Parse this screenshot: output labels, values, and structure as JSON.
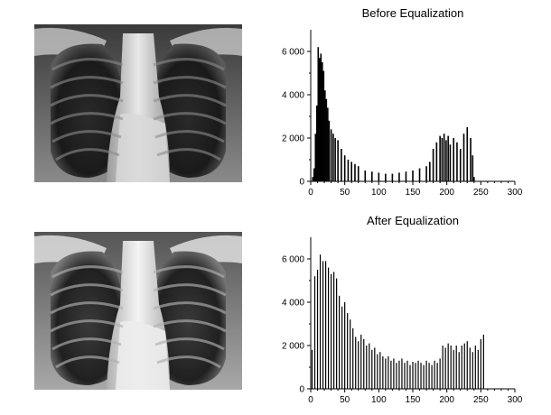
{
  "chart_data": [
    {
      "type": "bar",
      "title": "Before Equalization",
      "xlabel": "",
      "ylabel": "",
      "xlim": [
        0,
        300
      ],
      "ylim": [
        0,
        7000
      ],
      "x_ticks": [
        0,
        50,
        100,
        150,
        200,
        250,
        300
      ],
      "y_ticks": [
        0,
        2000,
        4000,
        6000
      ],
      "x_tick_labels": [
        "0",
        "50",
        "100",
        "150",
        "200",
        "250",
        "300"
      ],
      "y_tick_labels": [
        "0",
        "2 000",
        "4 000",
        "6 000"
      ],
      "grid": false,
      "series": [
        {
          "x": [
            3,
            5,
            7,
            9,
            11,
            13,
            15,
            17,
            19,
            21,
            23,
            25,
            27,
            30,
            33,
            36,
            40,
            45,
            50,
            55,
            60,
            65,
            70,
            80,
            90,
            100,
            110,
            120,
            130,
            140,
            150,
            160,
            170,
            175,
            180,
            185,
            190,
            193,
            196,
            199,
            202,
            205,
            210,
            215,
            220,
            225,
            230,
            235,
            238,
            240,
            242
          ],
          "values": [
            200,
            600,
            2200,
            3500,
            6200,
            5700,
            5900,
            5500,
            5100,
            4200,
            3800,
            3400,
            2800,
            2400,
            2200,
            2000,
            1900,
            1500,
            1200,
            1000,
            900,
            800,
            700,
            500,
            450,
            400,
            350,
            350,
            400,
            450,
            500,
            600,
            700,
            900,
            1500,
            1800,
            2100,
            2000,
            2200,
            1900,
            2100,
            1700,
            2000,
            1800,
            1500,
            2200,
            2500,
            2000,
            1200,
            200,
            0
          ]
        }
      ]
    },
    {
      "type": "bar",
      "title": "After Equalization",
      "xlabel": "",
      "ylabel": "",
      "xlim": [
        0,
        300
      ],
      "ylim": [
        0,
        7000
      ],
      "x_ticks": [
        0,
        50,
        100,
        150,
        200,
        250,
        300
      ],
      "y_ticks": [
        0,
        2000,
        4000,
        6000
      ],
      "x_tick_labels": [
        "0",
        "50",
        "100",
        "150",
        "200",
        "250",
        "300"
      ],
      "y_tick_labels": [
        "0",
        "2 000",
        "4 000",
        "6 000"
      ],
      "grid": false,
      "series": [
        {
          "x": [
            2,
            6,
            10,
            14,
            18,
            22,
            26,
            30,
            34,
            38,
            42,
            46,
            50,
            54,
            58,
            62,
            66,
            70,
            74,
            78,
            82,
            86,
            90,
            94,
            98,
            102,
            106,
            110,
            114,
            118,
            122,
            126,
            130,
            134,
            138,
            142,
            146,
            150,
            154,
            158,
            162,
            166,
            170,
            174,
            178,
            182,
            186,
            190,
            194,
            198,
            202,
            206,
            210,
            214,
            218,
            222,
            226,
            230,
            234,
            238,
            242,
            246,
            250,
            254
          ],
          "values": [
            1800,
            5200,
            5500,
            6200,
            5900,
            5900,
            5600,
            5300,
            5400,
            5100,
            4300,
            3800,
            4000,
            3500,
            3200,
            2800,
            2400,
            2200,
            2500,
            2300,
            2000,
            2100,
            1800,
            1900,
            1600,
            1700,
            1500,
            1400,
            1500,
            1300,
            1400,
            1200,
            1300,
            1400,
            1200,
            1300,
            1100,
            1250,
            1200,
            1300,
            1200,
            1100,
            1300,
            1200,
            1100,
            1300,
            1200,
            1400,
            2000,
            1900,
            2100,
            2000,
            1800,
            2000,
            1700,
            2000,
            2100,
            2200,
            1900,
            1700,
            2000,
            1800,
            2300,
            2500
          ]
        }
      ]
    }
  ]
}
